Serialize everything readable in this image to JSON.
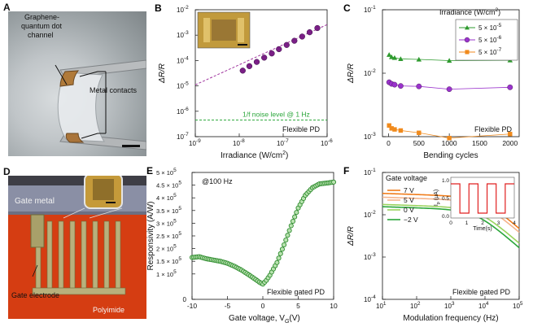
{
  "panels": {
    "A": {
      "letter": "A",
      "label_channel_1": "Graphene-",
      "label_channel_2": "quantum dot",
      "label_channel_3": "channel",
      "label_contacts": "Metal contacts"
    },
    "D": {
      "letter": "D",
      "label_gate_metal": "Gate metal",
      "label_gate_electrode": "Gate electrode",
      "label_substrate": "Polyimide"
    }
  },
  "chart_data": [
    {
      "panel": "B",
      "type": "scatter",
      "xscale": "log",
      "yscale": "log",
      "xlabel": "Irradiance (W/cm",
      "xlabel_sup": "2",
      "xlabel_end": ")",
      "ylabel": "ΔR/R",
      "xlim": [
        1e-09,
        1e-06
      ],
      "ylim": [
        1e-07,
        0.01
      ],
      "x_ticks": [
        {
          "v": 1e-09,
          "base": "10",
          "exp": "-9"
        },
        {
          "v": 1e-08,
          "base": "10",
          "exp": "-8"
        },
        {
          "v": 1e-07,
          "base": "10",
          "exp": "-7"
        },
        {
          "v": 1e-06,
          "base": "10",
          "exp": "-6"
        }
      ],
      "y_ticks": [
        {
          "v": 1e-07,
          "base": "10",
          "exp": "-7"
        },
        {
          "v": 1e-06,
          "base": "10",
          "exp": "-6"
        },
        {
          "v": 1e-05,
          "base": "10",
          "exp": "-5"
        },
        {
          "v": 0.0001,
          "base": "10",
          "exp": "-4"
        },
        {
          "v": 0.001,
          "base": "10",
          "exp": "-3"
        },
        {
          "v": 0.01,
          "base": "10",
          "exp": "-2"
        }
      ],
      "points": [
        {
          "x": 1.2e-08,
          "y": 4e-05
        },
        {
          "x": 1.7e-08,
          "y": 6e-05
        },
        {
          "x": 2.5e-08,
          "y": 8.8e-05
        },
        {
          "x": 3.7e-08,
          "y": 0.00013
        },
        {
          "x": 5.5e-08,
          "y": 0.00019
        },
        {
          "x": 8e-08,
          "y": 0.00028
        },
        {
          "x": 1.2e-07,
          "y": 0.00041
        },
        {
          "x": 1.8e-07,
          "y": 0.0006
        },
        {
          "x": 2.7e-07,
          "y": 0.00088
        },
        {
          "x": 4e-07,
          "y": 0.0013
        },
        {
          "x": 6e-07,
          "y": 0.0019
        }
      ],
      "fit_line": [
        {
          "x": 1e-09,
          "y": 1.1e-05
        },
        {
          "x": 1e-06,
          "y": 0.0026
        }
      ],
      "noise_level": 4.5e-07,
      "noise_label": "1/f noise level @ 1 Hz",
      "annotation": "Flexible PD",
      "colors": {
        "marker": "#7a1f86",
        "fit": "#a0359f",
        "noise": "#2aa63a"
      }
    },
    {
      "panel": "C",
      "type": "scatter",
      "yscale": "log",
      "xlabel": "Bending cycles",
      "ylabel": "ΔR/R",
      "xlim": [
        -100,
        2150
      ],
      "ylim": [
        0.001,
        0.1
      ],
      "x_ticks": [
        {
          "v": 0,
          "label": "0"
        },
        {
          "v": 500,
          "label": "500"
        },
        {
          "v": 1000,
          "label": "1000"
        },
        {
          "v": 1500,
          "label": "1500"
        },
        {
          "v": 2000,
          "label": "2000"
        }
      ],
      "y_ticks": [
        {
          "v": 0.001,
          "base": "10",
          "exp": "-3"
        },
        {
          "v": 0.01,
          "base": "10",
          "exp": "-2"
        },
        {
          "v": 0.1,
          "base": "10",
          "exp": "-1"
        }
      ],
      "legend_title": "Irradiance (W/cm",
      "legend_title_sup": "2",
      "legend_title_end": ")",
      "series": [
        {
          "name": "5 × 10",
          "exp": "-5",
          "color": "#2e9a2e",
          "marker": "triangle",
          "x": [
            10,
            50,
            100,
            200,
            500,
            1000,
            2000
          ],
          "y": [
            0.0195,
            0.018,
            0.0175,
            0.0168,
            0.0165,
            0.0158,
            0.016
          ]
        },
        {
          "name": "5 × 10",
          "exp": "-6",
          "color": "#9a33cc",
          "marker": "circle",
          "x": [
            10,
            50,
            100,
            200,
            500,
            1000,
            2000
          ],
          "y": [
            0.0072,
            0.0068,
            0.0066,
            0.0063,
            0.0062,
            0.0056,
            0.006
          ]
        },
        {
          "name": "5 × 10",
          "exp": "-7",
          "color": "#f08a1c",
          "marker": "square",
          "x": [
            10,
            50,
            100,
            200,
            500,
            1000,
            2000
          ],
          "y": [
            0.0015,
            0.00135,
            0.0013,
            0.00125,
            0.00115,
            0.00095,
            0.0011
          ]
        }
      ],
      "annotation": "Flexible PD"
    },
    {
      "panel": "E",
      "type": "scatter",
      "xlabel": "Gate voltage, V",
      "xlabel_sub": "G",
      "xlabel_end": "(V)",
      "ylabel": "Responsivity (A/W)",
      "xlim": [
        -10,
        10
      ],
      "ylim": [
        0,
        500000
      ],
      "x_ticks": [
        {
          "v": -10,
          "label": "-10"
        },
        {
          "v": -5,
          "label": "-5"
        },
        {
          "v": 0,
          "label": "0"
        },
        {
          "v": 5,
          "label": "5"
        },
        {
          "v": 10,
          "label": "10"
        }
      ],
      "y_ticks": [
        {
          "v": 0,
          "label": "0"
        },
        {
          "v": 100000,
          "base": "1 × 10",
          "exp": "5"
        },
        {
          "v": 150000,
          "base": "1.5 × 10",
          "exp": "5"
        },
        {
          "v": 200000,
          "base": "2 × 10",
          "exp": "5"
        },
        {
          "v": 250000,
          "base": "2.5 × 10",
          "exp": "5"
        },
        {
          "v": 300000,
          "base": "3 × 10",
          "exp": "5"
        },
        {
          "v": 350000,
          "base": "3.5 × 10",
          "exp": "5"
        },
        {
          "v": 400000,
          "base": "4 × 10",
          "exp": "5"
        },
        {
          "v": 450000,
          "base": "4.5 × 10",
          "exp": "5"
        },
        {
          "v": 500000,
          "base": "5 × 10",
          "exp": "5"
        }
      ],
      "curve_x": [
        -10,
        -9,
        -8,
        -7,
        -6,
        -5,
        -4,
        -3,
        -2,
        -1,
        -0.5,
        0,
        0.5,
        1,
        2,
        3,
        4,
        5,
        6,
        7,
        8,
        9,
        10
      ],
      "curve_y": [
        165000,
        168000,
        160000,
        155000,
        150000,
        142000,
        130000,
        115000,
        97000,
        78000,
        68000,
        60000,
        75000,
        95000,
        145000,
        215000,
        290000,
        360000,
        410000,
        440000,
        455000,
        458000,
        462000
      ],
      "annotation_top": "@100 Hz",
      "annotation": "Flexible gated PD",
      "colors": {
        "marker": "#2e8b2e",
        "fill": "#b9e3b0"
      }
    },
    {
      "panel": "F",
      "type": "line",
      "xscale": "log",
      "yscale": "log",
      "xlabel": "Modulation frequency (Hz)",
      "ylabel": "ΔR/R",
      "xlim": [
        10,
        100000
      ],
      "ylim": [
        0.0001,
        0.1
      ],
      "x_ticks": [
        {
          "v": 10,
          "base": "10",
          "exp": "1"
        },
        {
          "v": 100,
          "base": "10",
          "exp": "2"
        },
        {
          "v": 1000,
          "base": "10",
          "exp": "3"
        },
        {
          "v": 10000,
          "base": "10",
          "exp": "4"
        },
        {
          "v": 100000,
          "base": "10",
          "exp": "5"
        }
      ],
      "y_ticks": [
        {
          "v": 0.0001,
          "base": "10",
          "exp": "-4"
        },
        {
          "v": 0.001,
          "base": "10",
          "exp": "-3"
        },
        {
          "v": 0.01,
          "base": "10",
          "exp": "-2"
        },
        {
          "v": 0.1,
          "base": "10",
          "exp": "-1"
        }
      ],
      "legend_title": "Gate voltage",
      "series": [
        {
          "name": "7 V",
          "color": "#f07c1a",
          "a": 0.032,
          "fc": 8000
        },
        {
          "name": "5 V",
          "color": "#f5b48c",
          "a": 0.026,
          "fc": 8000
        },
        {
          "name": "0 V",
          "color": "#9ad35e",
          "a": 0.0175,
          "fc": 6000
        },
        {
          "name": "−2 V",
          "color": "#2aa63a",
          "a": 0.0155,
          "fc": 5000
        }
      ],
      "inset": {
        "ylabel": "I",
        "ylabel_sub": "p",
        "ylabel_end": " (μA)",
        "xlabel": "Time(s)",
        "x_ticks": [
          "0",
          "1",
          "2",
          "3",
          "4"
        ],
        "y_ticks": [
          "1.0",
          "0.5",
          "0.0"
        ],
        "color": "#e02020"
      },
      "annotation": "Flexible gated PD"
    }
  ]
}
